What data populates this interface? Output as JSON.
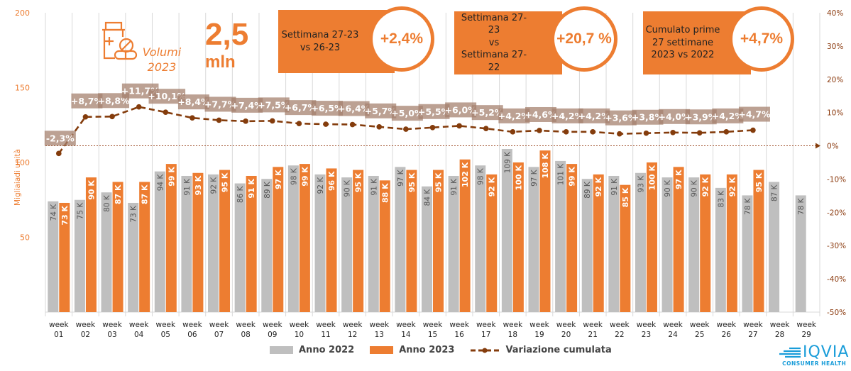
{
  "header": {
    "icon": "medicine-bottle-pills-icon",
    "volumi_line1": "Volumi",
    "volumi_line2": "2023",
    "total_value": "2,5",
    "total_unit": "mln"
  },
  "kpis": [
    {
      "label_lines": [
        "Settimana 27-23",
        "vs 26-23"
      ],
      "value": "+2,4%"
    },
    {
      "label_lines": [
        "Settimana  27-23",
        "vs",
        "Settimana  27-22"
      ],
      "value": "+20,7 %"
    },
    {
      "label_lines": [
        "Cumulato prime",
        "27 settimane",
        "2023 vs 2022"
      ],
      "value": "+4,7%"
    }
  ],
  "legend": {
    "items": [
      {
        "label": "Anno 2022",
        "color": "#BFBFBF"
      },
      {
        "label": "Anno 2023",
        "color": "#ED7D31"
      },
      {
        "label": "Variazione cumulata",
        "color": "#843C0C"
      }
    ]
  },
  "logo": {
    "name": "IQVIA",
    "sub": "CONSUMER HEALTH"
  },
  "colors": {
    "anno2022": "#BFBFBF",
    "anno2023": "#ED7D31",
    "variazione": "#843C0C",
    "label_box": "#A5826F"
  },
  "chart_data": {
    "type": "bar",
    "title": "",
    "xlabel": "",
    "ylabel": "Migliaiadi unità",
    "ylim": [
      0,
      200
    ],
    "yticks": [
      50,
      100,
      150,
      200
    ],
    "y2lim": [
      -50,
      40
    ],
    "y2ticks": [
      "-50%",
      "-40%",
      "-30%",
      "-20%",
      "-10%",
      "0%",
      "10%",
      "20%",
      "30%",
      "40%"
    ],
    "grid": "vertical",
    "legend_position": "bottom",
    "categories": [
      "week 01",
      "week 02",
      "week 03",
      "week 04",
      "week 05",
      "week 06",
      "week 07",
      "week 08",
      "week 09",
      "week 10",
      "week 11",
      "week 12",
      "week 13",
      "week 14",
      "week 15",
      "week 16",
      "week 17",
      "week 18",
      "week 19",
      "week 20",
      "week 21",
      "week 22",
      "week 23",
      "week 24",
      "week 25",
      "week 26",
      "week 27",
      "week 28",
      "week 29"
    ],
    "series": [
      {
        "name": "Anno 2022",
        "type": "bar",
        "axis": "left",
        "values": [
          74,
          75,
          80,
          73,
          94,
          91,
          92,
          86,
          89,
          98,
          92,
          90,
          91,
          97,
          84,
          91,
          98,
          109,
          97,
          101,
          89,
          91,
          93,
          90,
          90,
          83,
          78,
          87,
          78
        ],
        "labels": [
          "74 K",
          "75 K",
          "80 K",
          "73 K",
          "94 K",
          "91 K",
          "92 K",
          "86 K",
          "89 K",
          "98 K",
          "92 K",
          "90 K",
          "91 K",
          "97 K",
          "84 K",
          "91 K",
          "98 K",
          "109 K",
          "97 K",
          "101 K",
          "89 K",
          "91 K",
          "93 K",
          "90 K",
          "90 K",
          "83 K",
          "78 K",
          "87 K",
          "78 K"
        ]
      },
      {
        "name": "Anno 2023",
        "type": "bar",
        "axis": "left",
        "values": [
          73,
          90,
          87,
          87,
          99,
          93,
          95,
          91,
          97,
          99,
          96,
          95,
          88,
          95,
          95,
          102,
          92,
          100,
          108,
          99,
          92,
          85,
          100,
          97,
          92,
          92,
          95,
          null,
          null
        ],
        "labels": [
          "73 K",
          "90 K",
          "87 K",
          "87 K",
          "99 K",
          "93 K",
          "95 K",
          "91 K",
          "97 K",
          "99 K",
          "96 K",
          "95 K",
          "88 K",
          "95 K",
          "95 K",
          "102 K",
          "92 K",
          "100 K",
          "108 K",
          "99 K",
          "92 K",
          "85 K",
          "100 K",
          "97 K",
          "92 K",
          "92 K",
          "95 K",
          null,
          null
        ]
      },
      {
        "name": "Variazione cumulata",
        "type": "line",
        "axis": "right",
        "values": [
          -2.3,
          8.7,
          8.8,
          11.7,
          10.1,
          8.4,
          7.7,
          7.4,
          7.5,
          6.7,
          6.5,
          6.4,
          5.7,
          5.0,
          5.5,
          6.0,
          5.2,
          4.2,
          4.6,
          4.2,
          4.2,
          3.6,
          3.8,
          4.0,
          3.9,
          4.2,
          4.7,
          null,
          null
        ],
        "labels": [
          "-2,3%",
          "+8,7%",
          "+8,8%",
          "+11,7%",
          "+10,1%",
          "+8,4%",
          "+7,7%",
          "+7,4%",
          "+7,5%",
          "+6,7%",
          "+6,5%",
          "+6,4%",
          "+5,7%",
          "+5,0%",
          "+5,5%",
          "+6,0%",
          "+5,2%",
          "+4,2%",
          "+4,6%",
          "+4,2%",
          "+4,2%",
          "+3,6%",
          "+3,8%",
          "+4,0%",
          "+3,9%",
          "+4,2%",
          "+4,7%",
          null,
          null
        ]
      }
    ],
    "reference_line": {
      "value": 0,
      "axis": "right",
      "style": "dotted-arrow"
    }
  }
}
